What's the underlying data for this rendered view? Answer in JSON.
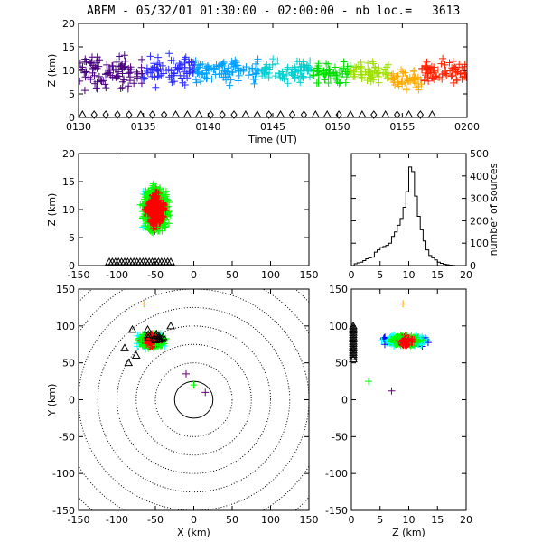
{
  "header": {
    "title": "ABFM - 05/32/01 01:30:00 - 02:00:00 - nb loc.=",
    "count": "3613"
  },
  "colors": {
    "red": "#ff0000",
    "blue": "#0000ff",
    "green": "#00ff00",
    "purple": "#6a0080",
    "black": "#000000"
  },
  "chart_data": [
    {
      "name": "time-height",
      "type": "scatter",
      "xlabel": "Time (UT)",
      "ylabel": "Z (km)",
      "xticks": [
        "0130",
        "0135",
        "0140",
        "0145",
        "0150",
        "0155",
        "0200"
      ],
      "yticks": [
        "0",
        "5",
        "10",
        "15",
        "20"
      ],
      "xlim": [
        "01:30",
        "02:00"
      ],
      "ylim": [
        0,
        20
      ],
      "marker": "plus",
      "color_by": "time (purple to red)",
      "clusters": [
        {
          "t_start": 0.0,
          "t_end": 5.0,
          "z_center": 9.5,
          "z_spread": 5.0,
          "color": "#4b0082"
        },
        {
          "t_start": 5.0,
          "t_end": 9.0,
          "z_center": 10.0,
          "z_spread": 4.5,
          "color": "#2a2aff"
        },
        {
          "t_start": 9.0,
          "t_end": 14.0,
          "z_center": 10.0,
          "z_spread": 3.8,
          "color": "#00a0ff"
        },
        {
          "t_start": 14.0,
          "t_end": 18.0,
          "z_center": 10.0,
          "z_spread": 3.2,
          "color": "#00d0d0"
        },
        {
          "t_start": 18.0,
          "t_end": 21.0,
          "z_center": 9.5,
          "z_spread": 3.0,
          "color": "#00e000"
        },
        {
          "t_start": 21.0,
          "t_end": 24.0,
          "z_center": 9.5,
          "z_spread": 3.0,
          "color": "#a0e000"
        },
        {
          "t_start": 24.0,
          "t_end": 26.5,
          "z_center": 8.0,
          "z_spread": 3.0,
          "color": "#ffaa00"
        },
        {
          "t_start": 26.5,
          "t_end": 30.0,
          "z_center": 9.5,
          "z_spread": 3.5,
          "color": "#ff2000"
        }
      ],
      "ground_markers": {
        "z": 0,
        "markers": [
          "diamond",
          "triangle"
        ]
      }
    },
    {
      "name": "x-height",
      "type": "scatter",
      "ylabel": "Z (km)",
      "xticks": [
        "-150",
        "-100",
        "-50",
        "0",
        "50",
        "100",
        "150"
      ],
      "yticks": [
        "0",
        "5",
        "10",
        "15",
        "20"
      ],
      "xlim": [
        -150,
        150
      ],
      "ylim": [
        0,
        20
      ],
      "marker": "plus",
      "cluster": {
        "x_center": -50,
        "x_spread": 40,
        "z_center": 10,
        "z_spread": 5
      },
      "ground_markers": {
        "z": 0,
        "x_range": [
          -110,
          -30
        ]
      }
    },
    {
      "name": "height-histogram",
      "type": "line",
      "ylabel": "number of sources",
      "xticks": [
        "0",
        "5",
        "10",
        "15",
        "20"
      ],
      "yticks": [
        "0",
        "100",
        "200",
        "300",
        "400",
        "500"
      ],
      "xlim": [
        0,
        20
      ],
      "ylim": [
        0,
        500
      ],
      "x": [
        0,
        0.5,
        1,
        1.5,
        2,
        2.5,
        3,
        3.5,
        4,
        4.5,
        5,
        5.5,
        6,
        6.5,
        7,
        7.5,
        8,
        8.5,
        9,
        9.5,
        10,
        10.5,
        11,
        11.5,
        12,
        12.5,
        13,
        13.5,
        14,
        14.5,
        15,
        15.5,
        16,
        16.5,
        17,
        17.5,
        18,
        18.5,
        19,
        19.5,
        20
      ],
      "values": [
        0,
        8,
        12,
        15,
        22,
        30,
        35,
        38,
        60,
        70,
        80,
        85,
        90,
        100,
        130,
        150,
        180,
        210,
        260,
        330,
        440,
        420,
        310,
        220,
        160,
        110,
        70,
        45,
        35,
        25,
        15,
        10,
        6,
        4,
        2,
        1,
        0,
        0,
        0,
        0,
        0
      ]
    },
    {
      "name": "plan-view",
      "type": "scatter",
      "xlabel": "X (km)",
      "ylabel": "Y (km)",
      "xticks": [
        "-150",
        "-100",
        "-50",
        "0",
        "50",
        "100",
        "150"
      ],
      "yticks": [
        "-150",
        "-100",
        "-50",
        "0",
        "50",
        "100",
        "150"
      ],
      "xlim": [
        -150,
        150
      ],
      "ylim": [
        -150,
        150
      ],
      "marker": "plus",
      "range_rings_km": [
        25,
        50,
        75,
        100,
        125,
        150,
        175,
        200
      ],
      "cluster": {
        "x_center": -55,
        "x_spread": 35,
        "y_center": 80,
        "y_spread": 20
      },
      "stations_xy": [
        [
          -80,
          95
        ],
        [
          -75,
          60
        ],
        [
          -60,
          95
        ],
        [
          -40,
          85
        ],
        [
          -30,
          100
        ],
        [
          -90,
          70
        ],
        [
          -85,
          50
        ]
      ]
    },
    {
      "name": "height-y",
      "type": "scatter",
      "xlabel": "Z (km)",
      "xticks": [
        "0",
        "5",
        "10",
        "15",
        "20"
      ],
      "yticks": [
        "-150",
        "-100",
        "-50",
        "0",
        "50",
        "100",
        "150"
      ],
      "xlim": [
        0,
        20
      ],
      "ylim": [
        -150,
        150
      ],
      "marker": "plus",
      "cluster": {
        "z_center": 9.5,
        "z_spread": 4.5,
        "y_center": 80,
        "y_spread": 18
      },
      "ground_markers": {
        "z": 0,
        "y_range": [
          55,
          100
        ]
      }
    }
  ]
}
